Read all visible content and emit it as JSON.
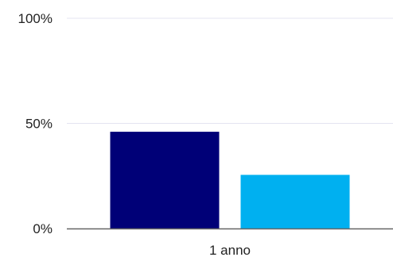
{
  "chart_data": {
    "type": "bar",
    "categories": [
      "1 anno"
    ],
    "series": [
      {
        "values": [
          46
        ],
        "color": "#000077"
      },
      {
        "values": [
          25.5
        ],
        "color": "#00b0f0"
      }
    ],
    "ylim": [
      0,
      100
    ],
    "y_ticks": [
      {
        "value": 0,
        "label": "0%"
      },
      {
        "value": 50,
        "label": "50%"
      },
      {
        "value": 100,
        "label": "100%"
      }
    ],
    "grid": true,
    "grid_color": "#e4e4f0",
    "axis_color": "#666666",
    "legend": "none"
  }
}
